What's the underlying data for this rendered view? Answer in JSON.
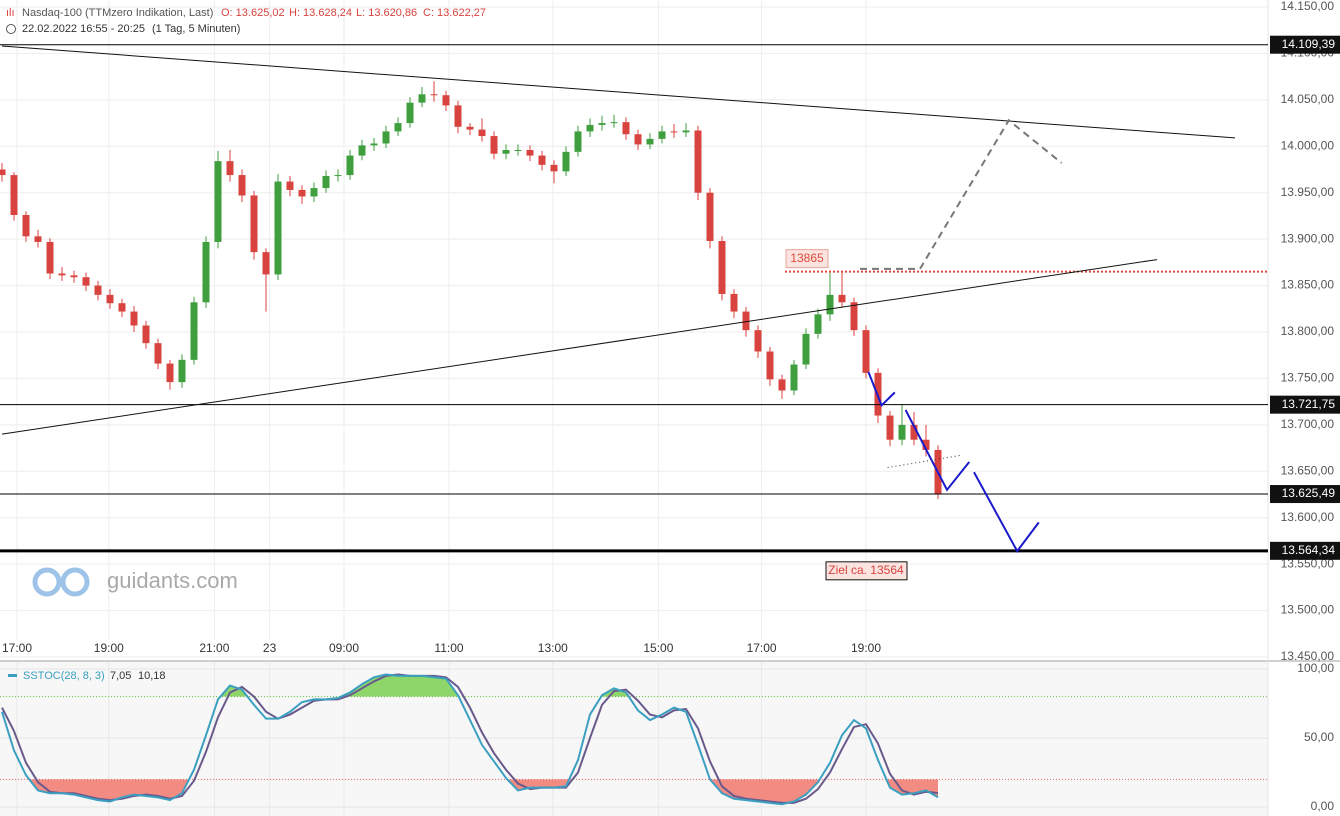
{
  "chart_data": [
    {
      "type": "candlestick",
      "title": "Nasdaq-100 (TTMzero Indikation, Last)",
      "stats": [
        "O: 13.625,02",
        "H: 13.628,24",
        "L: 13.620,86",
        "C: 13.622,27"
      ],
      "subtitle": "22.02.2022 16:55 - 20:25",
      "period": "(1 Tag, 5 Minuten)",
      "colors": {
        "up": "#3f9f3f",
        "down": "#d9433f"
      },
      "ohlc": [
        [
          13975,
          13982,
          13962,
          13969
        ],
        [
          13969,
          13972,
          13920,
          13926
        ],
        [
          13926,
          13930,
          13897,
          13903
        ],
        [
          13903,
          13910,
          13891,
          13897
        ],
        [
          13897,
          13901,
          13857,
          13863
        ],
        [
          13863,
          13870,
          13855,
          13861
        ],
        [
          13861,
          13866,
          13853,
          13859
        ],
        [
          13859,
          13864,
          13844,
          13850
        ],
        [
          13850,
          13855,
          13834,
          13840
        ],
        [
          13840,
          13846,
          13825,
          13831
        ],
        [
          13831,
          13836,
          13816,
          13822
        ],
        [
          13822,
          13828,
          13800,
          13807
        ],
        [
          13807,
          13812,
          13782,
          13788
        ],
        [
          13788,
          13793,
          13760,
          13766
        ],
        [
          13766,
          13770,
          13738,
          13746
        ],
        [
          13746,
          13776,
          13740,
          13770
        ],
        [
          13770,
          13838,
          13765,
          13832
        ],
        [
          13832,
          13903,
          13826,
          13897
        ],
        [
          13897,
          13995,
          13890,
          13984
        ],
        [
          13984,
          13996,
          13962,
          13969
        ],
        [
          13969,
          13975,
          13940,
          13947
        ],
        [
          13947,
          13952,
          13878,
          13886
        ],
        [
          13886,
          13890,
          13822,
          13862
        ],
        [
          13862,
          13970,
          13856,
          13962
        ],
        [
          13962,
          13968,
          13946,
          13953
        ],
        [
          13953,
          13958,
          13938,
          13946
        ],
        [
          13946,
          13961,
          13940,
          13955
        ],
        [
          13955,
          13974,
          13950,
          13968
        ],
        [
          13968,
          13975,
          13962,
          13969
        ],
        [
          13969,
          13996,
          13964,
          13990
        ],
        [
          13990,
          14007,
          13985,
          14001
        ],
        [
          14001,
          14009,
          13995,
          14003
        ],
        [
          14003,
          14022,
          13998,
          14016
        ],
        [
          14016,
          14031,
          14011,
          14025
        ],
        [
          14025,
          14053,
          14020,
          14047
        ],
        [
          14047,
          14064,
          14042,
          14056
        ],
        [
          14056,
          14070,
          14048,
          14055
        ],
        [
          14055,
          14060,
          14038,
          14044
        ],
        [
          14044,
          14049,
          14014,
          14021
        ],
        [
          14021,
          14025,
          14012,
          14018
        ],
        [
          14018,
          14030,
          14005,
          14011
        ],
        [
          14011,
          14016,
          13986,
          13992
        ],
        [
          13992,
          14002,
          13986,
          13996
        ],
        [
          13996,
          14002,
          13990,
          13996
        ],
        [
          13996,
          14001,
          13984,
          13990
        ],
        [
          13990,
          13995,
          13974,
          13980
        ],
        [
          13980,
          13985,
          13960,
          13973
        ],
        [
          13973,
          14000,
          13968,
          13994
        ],
        [
          13994,
          14022,
          13989,
          14016
        ],
        [
          14016,
          14030,
          14010,
          14023
        ],
        [
          14023,
          14033,
          14017,
          14025
        ],
        [
          14025,
          14034,
          14020,
          14026
        ],
        [
          14026,
          14031,
          14007,
          14013
        ],
        [
          14013,
          14018,
          13996,
          14002
        ],
        [
          14002,
          14014,
          13997,
          14008
        ],
        [
          14008,
          14022,
          14003,
          14016
        ],
        [
          14016,
          14024,
          14009,
          14015
        ],
        [
          14015,
          14025,
          14010,
          14017
        ],
        [
          14017,
          14022,
          13942,
          13950
        ],
        [
          13950,
          13955,
          13890,
          13898
        ],
        [
          13898,
          13903,
          13834,
          13841
        ],
        [
          13841,
          13846,
          13815,
          13822
        ],
        [
          13822,
          13827,
          13795,
          13802
        ],
        [
          13802,
          13807,
          13772,
          13779
        ],
        [
          13779,
          13784,
          13742,
          13749
        ],
        [
          13749,
          13754,
          13728,
          13737
        ],
        [
          13737,
          13770,
          13732,
          13765
        ],
        [
          13765,
          13804,
          13760,
          13798
        ],
        [
          13798,
          13825,
          13793,
          13819
        ],
        [
          13819,
          13864,
          13812,
          13840
        ],
        [
          13840,
          13866,
          13826,
          13832
        ],
        [
          13832,
          13837,
          13796,
          13802
        ],
        [
          13802,
          13807,
          13750,
          13756
        ],
        [
          13756,
          13761,
          13702,
          13710
        ],
        [
          13710,
          13715,
          13677,
          13684
        ],
        [
          13684,
          13722,
          13678,
          13700
        ],
        [
          13700,
          13714,
          13678,
          13684
        ],
        [
          13684,
          13700,
          13666,
          13673
        ],
        [
          13673,
          13678,
          13620,
          13625
        ]
      ],
      "xticks": [
        {
          "value": 1.25,
          "label": "17:00"
        },
        {
          "value": 8.9,
          "label": "19:00"
        },
        {
          "value": 17.7,
          "label": "21:00"
        },
        {
          "value": 22.3,
          "label": "23"
        },
        {
          "value": 28.5,
          "label": "09:00"
        },
        {
          "value": 37.25,
          "label": "11:00"
        },
        {
          "value": 45.9,
          "label": "13:00"
        },
        {
          "value": 54.7,
          "label": "15:00"
        },
        {
          "value": 63.3,
          "label": "17:00"
        },
        {
          "value": 72,
          "label": "19:00"
        }
      ],
      "ylim": [
        13450,
        14150
      ],
      "yticks": [
        {
          "value": 14150,
          "label": "14.150,00"
        },
        {
          "value": 14100,
          "label": "14.100,00"
        },
        {
          "value": 14050,
          "label": "14.050,00"
        },
        {
          "value": 14000,
          "label": "14.000,00"
        },
        {
          "value": 13950,
          "label": "13.950,00"
        },
        {
          "value": 13900,
          "label": "13.900,00"
        },
        {
          "value": 13850,
          "label": "13.850,00"
        },
        {
          "value": 13800,
          "label": "13.800,00"
        },
        {
          "value": 13750,
          "label": "13.750,00"
        },
        {
          "value": 13700,
          "label": "13.700,00"
        },
        {
          "value": 13650,
          "label": "13.650,00"
        },
        {
          "value": 13600,
          "label": "13.600,00"
        },
        {
          "value": 13550,
          "label": "13.550,00"
        },
        {
          "value": 13500,
          "label": "13.500,00"
        },
        {
          "value": 13450,
          "label": "13.450,00"
        }
      ],
      "grid": true,
      "levels": [
        {
          "value": 14109.39,
          "label": "14.109,39",
          "width": 1
        },
        {
          "value": 13721.75,
          "label": "13.721,75",
          "width": 1
        },
        {
          "value": 13625.49,
          "label": "13.625,49",
          "width": 1
        },
        {
          "value": 13564.34,
          "label": "13.564,34",
          "width": 3
        }
      ],
      "trendlines": [
        {
          "color": "#111111",
          "dash": "none",
          "width": 1,
          "points": [
            [
              0,
              14108
            ],
            [
              102.75,
              14009
            ]
          ]
        },
        {
          "color": "#111111",
          "dash": "none",
          "width": 1,
          "points": [
            [
              0,
              13690
            ],
            [
              96.25,
              13878
            ]
          ]
        },
        {
          "color": "#777777",
          "dash": "7,5",
          "width": 2,
          "points": [
            [
              71.5,
              13868
            ],
            [
              76.5,
              13868
            ],
            [
              83.9,
              14028
            ],
            [
              88.3,
              13982
            ]
          ]
        },
        {
          "color": "#1a1acc",
          "dash": "none",
          "width": 2,
          "points": [
            [
              72.2,
              13757
            ],
            [
              73.3,
              13721
            ],
            [
              74.4,
              13735
            ]
          ]
        },
        {
          "color": "#1a1acc",
          "dash": "none",
          "width": 2,
          "points": [
            [
              75.3,
              13716
            ],
            [
              78.75,
              13630
            ],
            [
              80.6,
              13660
            ]
          ]
        },
        {
          "color": "#1a1acc",
          "dash": "none",
          "width": 2,
          "points": [
            [
              81,
              13649
            ],
            [
              84.6,
              13564
            ],
            [
              86.4,
              13595
            ]
          ]
        },
        {
          "color": "#333333",
          "dash": "1,3",
          "width": 1,
          "points": [
            [
              73.8,
              13654
            ],
            [
              79.8,
              13667
            ]
          ]
        }
      ],
      "marker_line": {
        "value": 13865,
        "color": "#e04a3a"
      },
      "target_label": "Ziel ca. 13564",
      "watermark": "guidants.com"
    },
    {
      "type": "line",
      "series": [
        {
          "name": "SSTOC(28, 8, 3)",
          "color": "#3a9fc0",
          "current": {
            "value": 7.05,
            "label": "7,05"
          },
          "values": [
            69,
            41,
            23,
            12,
            10,
            10,
            9,
            7,
            5,
            4,
            7,
            9,
            8,
            7,
            5,
            10,
            27,
            52,
            78,
            88,
            85,
            74,
            64,
            64,
            69,
            76,
            78,
            78,
            79,
            83,
            89,
            94,
            96,
            95,
            95,
            95,
            94,
            93,
            81,
            63,
            45,
            33,
            21,
            12,
            14,
            14,
            14,
            15,
            34,
            67,
            81,
            86,
            83,
            70,
            63,
            67,
            72,
            69,
            45,
            20,
            10,
            6,
            5,
            4,
            3,
            2,
            4,
            9,
            18,
            32,
            52,
            63,
            57,
            34,
            14,
            9,
            10,
            12,
            7.05
          ]
        },
        {
          "color": "#6a5a8c",
          "current": {
            "value": 10.18,
            "label": "10,18"
          },
          "values": [
            72,
            55,
            32,
            18,
            11,
            10,
            10,
            8,
            6,
            5,
            6,
            8,
            9,
            8,
            6,
            8,
            19,
            40,
            65,
            83,
            87,
            80,
            69,
            64,
            67,
            72,
            77,
            78,
            78,
            81,
            86,
            91,
            95,
            96,
            95,
            95,
            95,
            94,
            87,
            72,
            54,
            39,
            27,
            17,
            13,
            14,
            14,
            14,
            25,
            50,
            74,
            84,
            85,
            77,
            67,
            65,
            70,
            71,
            57,
            33,
            15,
            8,
            6,
            5,
            4,
            3,
            3,
            6,
            13,
            25,
            42,
            58,
            60,
            46,
            24,
            12,
            9,
            11,
            10.18
          ]
        }
      ],
      "ylim": [
        0,
        100
      ],
      "yticks": [
        {
          "value": 100,
          "label": "100,00"
        },
        {
          "value": 50,
          "label": "50,00"
        },
        {
          "value": 0,
          "label": "0,00"
        }
      ],
      "levels": [
        {
          "value": 80,
          "color": "#6cc24a",
          "fill": "#8fd66a",
          "side": "above"
        },
        {
          "value": 20,
          "color": "#e36b6b",
          "fill": "#f28b82",
          "side": "below"
        }
      ]
    }
  ]
}
